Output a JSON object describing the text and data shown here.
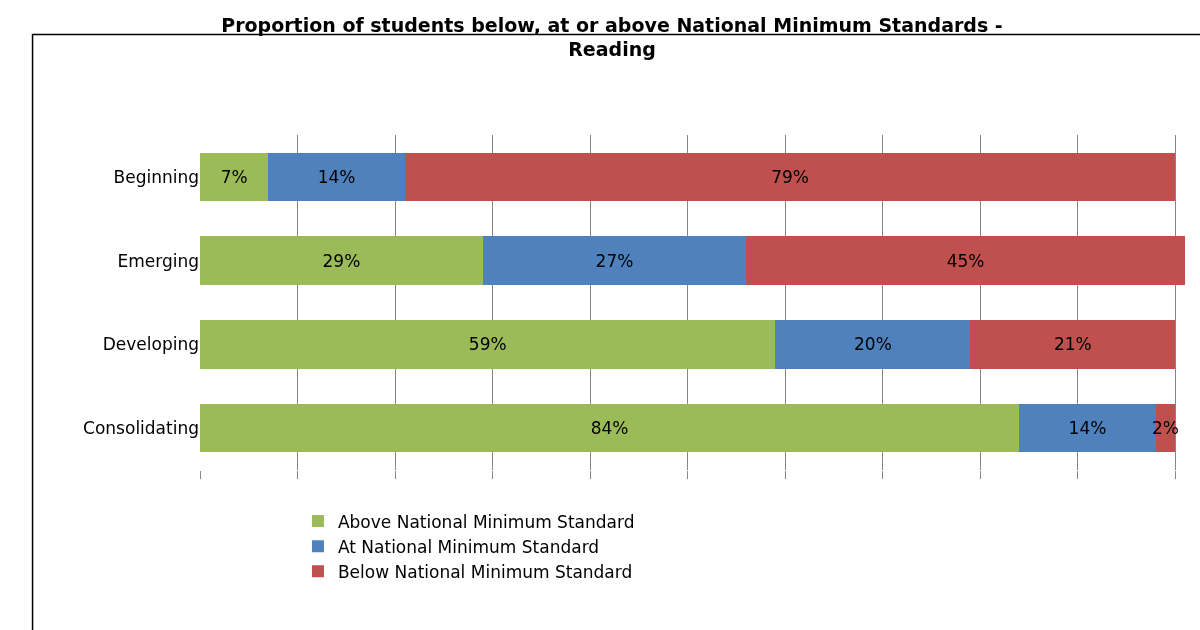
{
  "chart_data": {
    "type": "bar",
    "orientation": "horizontal",
    "stacked": true,
    "title": "Proportion of students below, at or above National Minimum Standards -\nReading",
    "categories": [
      "Beginning",
      "Emerging",
      "Developing",
      "Consolidating"
    ],
    "series": [
      {
        "name": "Above National Minimum Standard",
        "color": "#9bbb59",
        "values": [
          7,
          29,
          59,
          84
        ],
        "value_labels": [
          "7%",
          "29%",
          "59%",
          "84%"
        ]
      },
      {
        "name": "At National Minimum Standard",
        "color": "#4f81bd",
        "values": [
          14,
          27,
          20,
          14
        ],
        "value_labels": [
          "14%",
          "27%",
          "20%",
          "14%"
        ]
      },
      {
        "name": "Below National Minimum Standard",
        "color": "#c0504d",
        "values": [
          79,
          45,
          21,
          2
        ],
        "value_labels": [
          "79%",
          "45%",
          "21%",
          "2%"
        ]
      }
    ],
    "xlim": [
      0,
      101
    ],
    "xticks": [
      {
        "value": 0,
        "label": null
      },
      {
        "value": 10,
        "label": null
      },
      {
        "value": 20,
        "label": null
      },
      {
        "value": 30,
        "label": null
      },
      {
        "value": 40,
        "label": null
      },
      {
        "value": 50,
        "label": null
      },
      {
        "value": 60,
        "label": null
      },
      {
        "value": 70,
        "label": null
      },
      {
        "value": 80,
        "label": null
      },
      {
        "value": 90,
        "label": null
      },
      {
        "value": 100,
        "label": null
      }
    ],
    "tick_labels": "y",
    "grid": "x",
    "legend": "bottom"
  }
}
